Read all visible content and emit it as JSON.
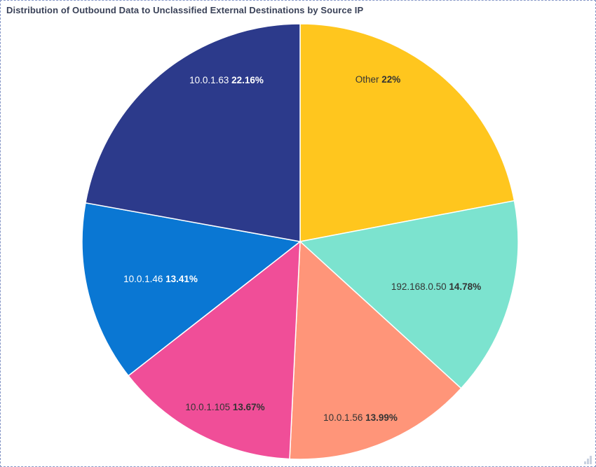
{
  "widget": {
    "title": "Distribution of Outbound Data to Unclassified External Destinations by Source IP",
    "title_color": "#3A4258",
    "border_color": "#8495C6",
    "resize_handle_color": "#C9D1E0"
  },
  "chart_data": {
    "type": "pie",
    "title": "Distribution of Outbound Data to Unclassified External Destinations by Source IP",
    "unit": "percent",
    "start_angle_deg": 0,
    "direction": "clockwise",
    "legend": "none",
    "slices": [
      {
        "label": "Other",
        "value": 22,
        "pct_label": "22%",
        "color": "#FFC61E",
        "text_color": "#343434"
      },
      {
        "label": "192.168.0.50",
        "value": 14.78,
        "pct_label": "14.78%",
        "color": "#7CE3CF",
        "text_color": "#343434"
      },
      {
        "label": "10.0.1.56",
        "value": 13.99,
        "pct_label": "13.99%",
        "color": "#FF9579",
        "text_color": "#343434"
      },
      {
        "label": "10.0.1.105",
        "value": 13.67,
        "pct_label": "13.67%",
        "color": "#F04E98",
        "text_color": "#343434"
      },
      {
        "label": "10.0.1.46",
        "value": 13.41,
        "pct_label": "13.41%",
        "color": "#0A77D3",
        "text_color": "#FFFFFF"
      },
      {
        "label": "10.0.1.63",
        "value": 22.16,
        "pct_label": "22.16%",
        "color": "#2C3A8B",
        "text_color": "#FFFFFF"
      }
    ]
  }
}
